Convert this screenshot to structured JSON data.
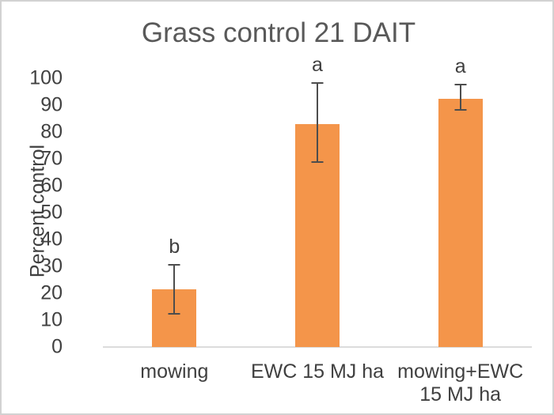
{
  "frame": {
    "background": "#ffffff",
    "border_color": "#d2d2d2"
  },
  "chart_data": {
    "type": "bar",
    "title": "Grass control 21 DAIT",
    "xlabel": "",
    "ylabel": "Percent control",
    "ylim": [
      0,
      100
    ],
    "ytick_step": 10,
    "ytick_labels": [
      "0",
      "10",
      "20",
      "30",
      "40",
      "50",
      "60",
      "70",
      "80",
      "90",
      "100"
    ],
    "categories": [
      "mowing",
      "EWC 15 MJ ha",
      "mowing+EWC 15 MJ ha"
    ],
    "category_label_lines": [
      [
        "mowing"
      ],
      [
        "EWC 15 MJ ha"
      ],
      [
        "mowing+EWC",
        "15 MJ ha"
      ]
    ],
    "values": [
      21.5,
      83,
      92.5
    ],
    "error_bars": {
      "low": [
        12,
        68.5,
        88
      ],
      "high": [
        31,
        98.5,
        98
      ]
    },
    "sig_letters": [
      "b",
      "a",
      "a"
    ],
    "bar_color": "#F4954A",
    "error_color": "#4d4d4d",
    "axis_line_color": "#dcdcdc",
    "text_color": "#404040",
    "title_color": "#595959",
    "grid": "off",
    "legend_position": "none"
  }
}
